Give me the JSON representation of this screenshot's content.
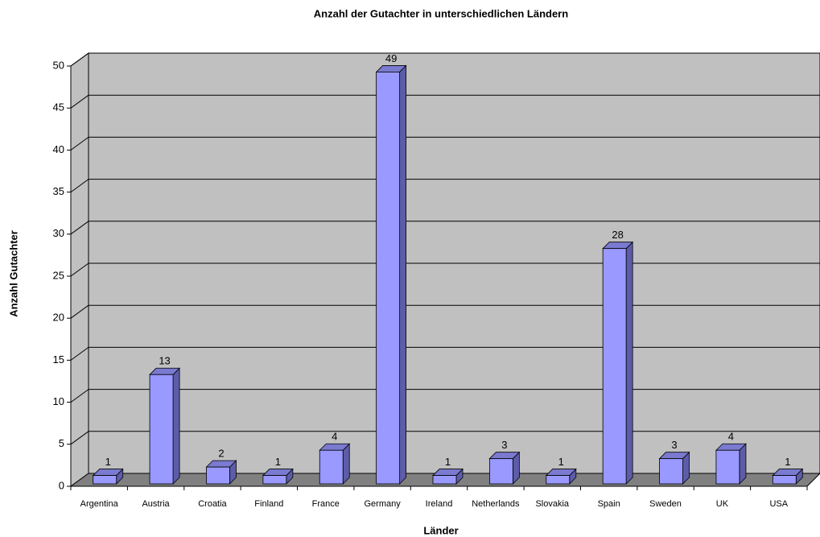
{
  "chart_data": {
    "type": "bar3d",
    "title": "Anzahl der Gutachter in unterschiedlichen Ländern",
    "x_label": "Länder",
    "y_label": "Anzahl Gutachter",
    "categories": [
      "Argentina",
      "Austria",
      "Croatia",
      "Finland",
      "France",
      "Germany",
      "Ireland",
      "Netherlands",
      "Slovakia",
      "Spain",
      "Sweden",
      "UK",
      "USA"
    ],
    "values": [
      1,
      13,
      2,
      1,
      4,
      49,
      1,
      3,
      1,
      28,
      3,
      4,
      1
    ],
    "color": "#9999ff",
    "ylim": [
      0,
      50
    ],
    "yticks": [
      0,
      5,
      10,
      15,
      20,
      25,
      30,
      35,
      40,
      45,
      50
    ],
    "grid": true
  }
}
